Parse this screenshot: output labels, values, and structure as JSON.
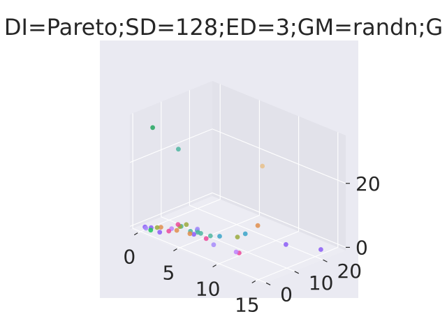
{
  "chart_data": {
    "type": "scatter",
    "projection": "3d",
    "title": "DI=Pareto;SD=128;ED=3;GM=randn;G",
    "xlabel": "",
    "ylabel": "",
    "zlabel": "",
    "xlim": [
      -1,
      16
    ],
    "ylim": [
      -1,
      28
    ],
    "zlim": [
      -1,
      35
    ],
    "xticks": [
      "0",
      "5",
      "10",
      "15"
    ],
    "yticks": [
      "0",
      "10",
      "20"
    ],
    "zticks": [
      "0",
      "20"
    ],
    "grid": true,
    "points": [
      {
        "x": 0.2,
        "y": 1.0,
        "z": 0.3,
        "color": "#8b5cf6"
      },
      {
        "x": 0.5,
        "y": 0.5,
        "z": 0.4,
        "color": "#a78bfa"
      },
      {
        "x": 0.8,
        "y": 1.5,
        "z": 0.5,
        "color": "#8b5cf6"
      },
      {
        "x": 1.0,
        "y": 0.8,
        "z": 0.2,
        "color": "#22c55e"
      },
      {
        "x": 1.2,
        "y": 2.5,
        "z": 0.6,
        "color": "#9aaa3c"
      },
      {
        "x": 1.5,
        "y": 3.0,
        "z": 0.8,
        "color": "#e08e4b"
      },
      {
        "x": 2.0,
        "y": 1.2,
        "z": 0.4,
        "color": "#8b5cf6"
      },
      {
        "x": 2.5,
        "y": 4.0,
        "z": 1.0,
        "color": "#c084fc"
      },
      {
        "x": 2.8,
        "y": 2.2,
        "z": 1.2,
        "color": "#ec4899"
      },
      {
        "x": 3.0,
        "y": 6.0,
        "z": 1.5,
        "color": "#4db6a0"
      },
      {
        "x": 3.2,
        "y": 5.0,
        "z": 2.0,
        "color": "#9aaa3c"
      },
      {
        "x": 3.5,
        "y": 3.5,
        "z": 3.5,
        "color": "#ec4899"
      },
      {
        "x": 3.6,
        "y": 2.8,
        "z": 2.0,
        "color": "#e08e4b"
      },
      {
        "x": 4.0,
        "y": 6.5,
        "z": 0.8,
        "color": "#4db6a0"
      },
      {
        "x": 4.2,
        "y": 4.5,
        "z": 3.8,
        "color": "#9aaa3c"
      },
      {
        "x": 4.5,
        "y": 7.5,
        "z": 1.2,
        "color": "#3aa5c8"
      },
      {
        "x": 4.8,
        "y": 5.5,
        "z": 1.0,
        "color": "#8b5cf6"
      },
      {
        "x": 5.2,
        "y": 3.0,
        "z": 2.5,
        "color": "#e08e4b"
      },
      {
        "x": 5.5,
        "y": 6.0,
        "z": 1.8,
        "color": "#4db6a0"
      },
      {
        "x": 5.8,
        "y": 4.0,
        "z": 4.2,
        "color": "#a78bfa"
      },
      {
        "x": 6.0,
        "y": 8.0,
        "z": 0.8,
        "color": "#4db6a0"
      },
      {
        "x": 6.5,
        "y": 2.2,
        "z": 4.5,
        "color": "#4db6a0"
      },
      {
        "x": 6.0,
        "y": 6.5,
        "z": 0.5,
        "color": "#ec4899"
      },
      {
        "x": 7.0,
        "y": 8.5,
        "z": 1.5,
        "color": "#3aa5c8"
      },
      {
        "x": 7.5,
        "y": 5.0,
        "z": 0.6,
        "color": "#a78bfa"
      },
      {
        "x": 8.0,
        "y": 12.0,
        "z": 1.0,
        "color": "#9aaa3c"
      },
      {
        "x": 9.0,
        "y": 12.0,
        "z": 3.0,
        "color": "#3aa5c8"
      },
      {
        "x": 9.5,
        "y": 15.0,
        "z": 5.0,
        "color": "#e08e4b"
      },
      {
        "x": 10.0,
        "y": 6.0,
        "z": 0.5,
        "color": "#c084fc"
      },
      {
        "x": 10.2,
        "y": 6.5,
        "z": 0.2,
        "color": "#ec4899"
      },
      {
        "x": 12.0,
        "y": 18.0,
        "z": 0.5,
        "color": "#8b5cf6"
      },
      {
        "x": 15.0,
        "y": 22.0,
        "z": 0.5,
        "color": "#8b5cf6"
      },
      {
        "x": 1.0,
        "y": 1.5,
        "z": 32.0,
        "color": "#22a65e"
      },
      {
        "x": 3.0,
        "y": 5.0,
        "z": 26.0,
        "color": "#4db6a0"
      },
      {
        "x": 9.0,
        "y": 18.0,
        "z": 22.0,
        "color": "#e8c08a"
      }
    ]
  }
}
